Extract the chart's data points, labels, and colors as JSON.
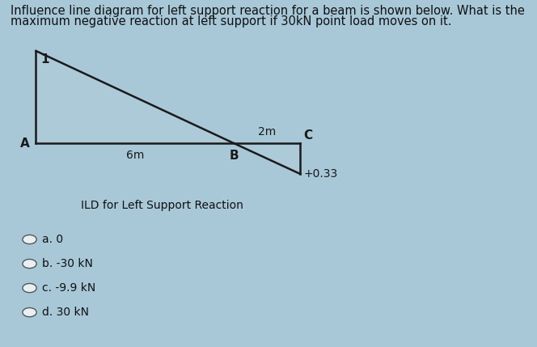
{
  "title_line1": "Influence line diagram for left support reaction for a beam is shown below. What is the",
  "title_line2": "maximum negative reaction at left support if 30kN point load moves on it.",
  "title_fontsize": 10.5,
  "point_A_label": "A",
  "point_B_label": "B",
  "point_C_label": "C",
  "label_1": "1",
  "label_6m": "6m",
  "label_2m": "2m",
  "label_033": "+0.33",
  "caption": "ILD for Left Support Reaction",
  "options": [
    "a. 0",
    "b. -30 kN",
    "c. -9.9 kN",
    "d. 30 kN"
  ],
  "bg_color": "#a8c8d8",
  "box_bg": "#c8dce8",
  "line_color": "#1a1a1a",
  "text_color": "#111111",
  "title_color": "#111111"
}
